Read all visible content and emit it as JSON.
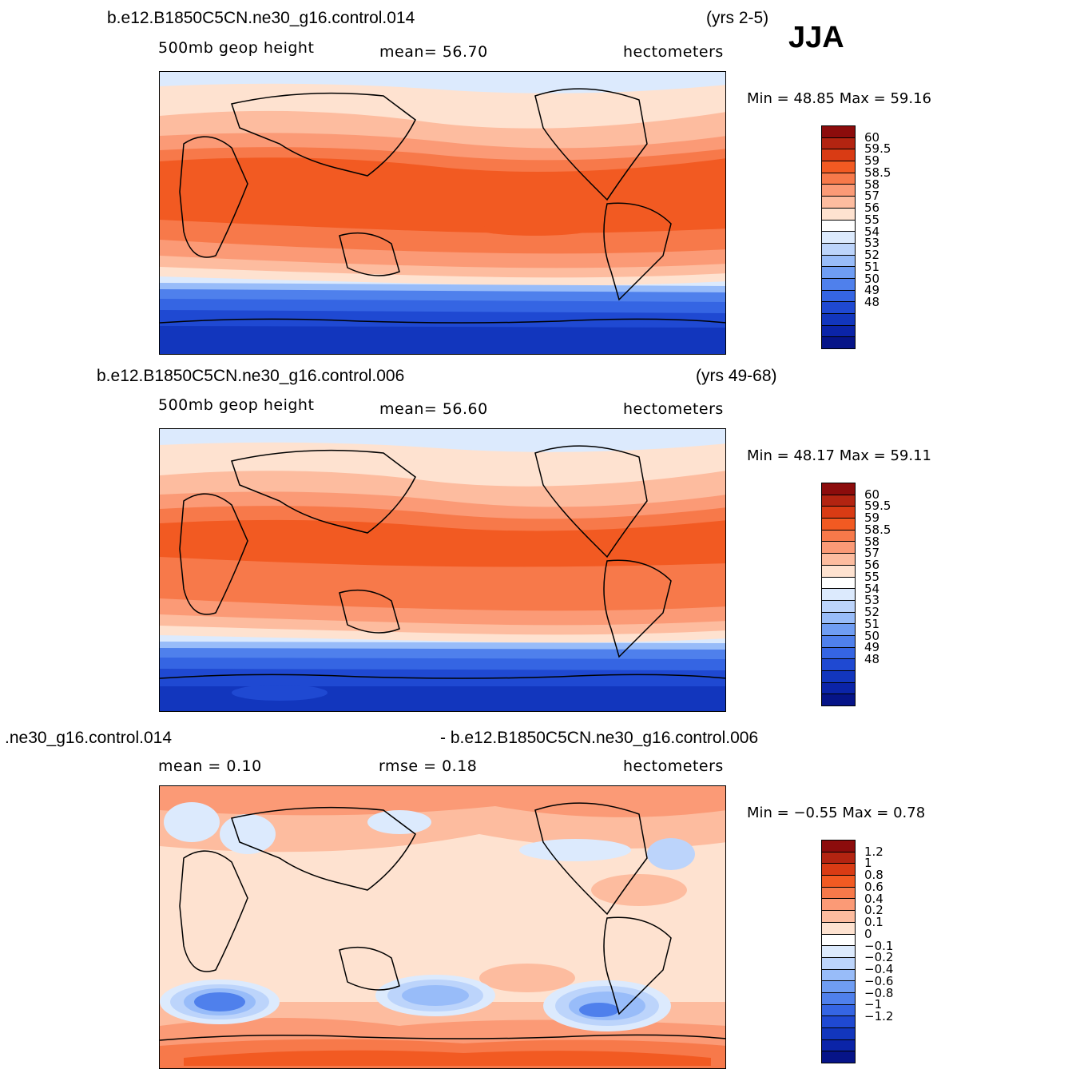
{
  "season": "JJA",
  "palette": {
    "positive": [
      "#8c0c0c",
      "#b32411",
      "#d93b14",
      "#f25a22",
      "#f7794a",
      "#fb9a76",
      "#fdbc9f",
      "#fee2d0"
    ],
    "negative": [
      "#dceafd",
      "#bcd4fb",
      "#98bcf9",
      "#6f9df3",
      "#4f80ec",
      "#3565e3",
      "#1f49d2",
      "#1236bd",
      "#0b24a8",
      "#061488"
    ],
    "negative_diff": [
      "#dceafd",
      "#bcd4fb",
      "#98bcf9",
      "#6f9df3",
      "#4f80ec",
      "#3565e3",
      "#1f49d2",
      "#1236bd",
      "#0b24a8"
    ],
    "outline": "#000000"
  },
  "panels": [
    {
      "run": "b.e12.B1850C5CN.ne30_g16.control.014",
      "years": "(yrs 2-5)",
      "field": "500mb  geop  height",
      "stat": "mean=   56.70",
      "units": "hectometers",
      "minmax": "Min =   48.85  Max =   59.16",
      "levels": [
        "60",
        "59.5",
        "59",
        "58.5",
        "58",
        "57",
        "56",
        "55",
        "54",
        "53",
        "52",
        "51",
        "50",
        "49",
        "48"
      ],
      "colorbar": [
        "#8c0c0c",
        "#b32411",
        "#d93b14",
        "#f25a22",
        "#f7794a",
        "#fb9a76",
        "#fdbc9f",
        "#fee2d0",
        "#ffffff",
        "#dceafd",
        "#bcd4fb",
        "#98bcf9",
        "#6f9df3",
        "#4f80ec",
        "#3565e3",
        "#1f49d2",
        "#1236bd",
        "#0b24a8",
        "#061488"
      ]
    },
    {
      "run": "b.e12.B1850C5CN.ne30_g16.control.006",
      "years": "(yrs 49-68)",
      "field": "500mb  geop  height",
      "stat": "mean=   56.60",
      "units": "hectometers",
      "minmax": "Min =   48.17  Max =   59.11",
      "levels": [
        "60",
        "59.5",
        "59",
        "58.5",
        "58",
        "57",
        "56",
        "55",
        "54",
        "53",
        "52",
        "51",
        "50",
        "49",
        "48"
      ],
      "colorbar": [
        "#8c0c0c",
        "#b32411",
        "#d93b14",
        "#f25a22",
        "#f7794a",
        "#fb9a76",
        "#fdbc9f",
        "#fee2d0",
        "#ffffff",
        "#dceafd",
        "#bcd4fb",
        "#98bcf9",
        "#6f9df3",
        "#4f80ec",
        "#3565e3",
        "#1f49d2",
        "#1236bd",
        "#0b24a8",
        "#061488"
      ]
    },
    {
      "run": ".ne30_g16.control.014",
      "run2": "- b.e12.B1850C5CN.ne30_g16.control.006",
      "field": "mean =     0.10",
      "stat": "rmse =     0.18",
      "units": "hectometers",
      "minmax": "Min =   −0.55  Max =     0.78",
      "levels": [
        "1.2",
        "1",
        "0.8",
        "0.6",
        "0.4",
        "0.2",
        "0.1",
        "0",
        "−0.1",
        "−0.2",
        "−0.4",
        "−0.6",
        "−0.8",
        "−1",
        "−1.2"
      ],
      "colorbar": [
        "#8c0c0c",
        "#b32411",
        "#d93b14",
        "#f25a22",
        "#f7794a",
        "#fb9a76",
        "#fdbc9f",
        "#fee2d0",
        "#ffffff",
        "#dceafd",
        "#bcd4fb",
        "#98bcf9",
        "#6f9df3",
        "#4f80ec",
        "#3565e3",
        "#1f49d2",
        "#1236bd",
        "#0b24a8",
        "#061488"
      ]
    }
  ]
}
